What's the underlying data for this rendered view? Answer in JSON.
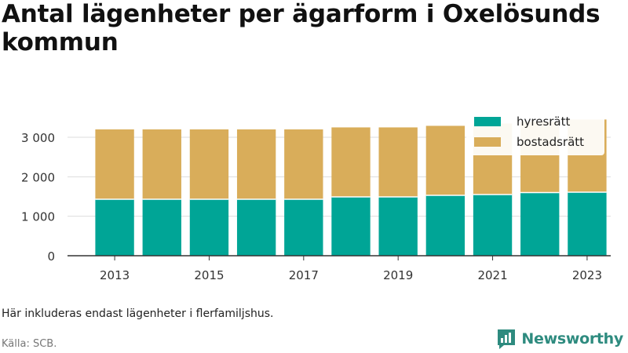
{
  "title": "Antal lägenheter per ägarform i Oxelösunds kommun",
  "note": "Här inkluderas endast lägenheter i flerfamiljshus.",
  "source": "Källa: SCB.",
  "brand": "Newsworthy",
  "colors": {
    "hyresratt": "#00a596",
    "bostadsratt": "#d9ad5a",
    "brand": "#2e8b7f"
  },
  "chart_data": {
    "type": "bar",
    "stacked": true,
    "categories": [
      "2013",
      "2014",
      "2015",
      "2016",
      "2017",
      "2018",
      "2019",
      "2020",
      "2021",
      "2022",
      "2023"
    ],
    "x_tick_labels": [
      "2013",
      "2015",
      "2017",
      "2019",
      "2021",
      "2023"
    ],
    "y_tick_labels": [
      "0",
      "1 000",
      "2 000",
      "3 000"
    ],
    "y_ticks": [
      0,
      1000,
      2000,
      3000
    ],
    "ylim": [
      0,
      3600
    ],
    "grid": true,
    "legend_position": "top-right",
    "series": [
      {
        "name": "hyresrätt",
        "color_key": "hyresratt",
        "values": [
          1430,
          1430,
          1430,
          1430,
          1430,
          1490,
          1490,
          1530,
          1550,
          1600,
          1610
        ]
      },
      {
        "name": "bostadsrätt",
        "color_key": "bostadsratt",
        "values": [
          1770,
          1770,
          1770,
          1770,
          1770,
          1760,
          1760,
          1760,
          1800,
          1800,
          1840
        ]
      }
    ]
  }
}
